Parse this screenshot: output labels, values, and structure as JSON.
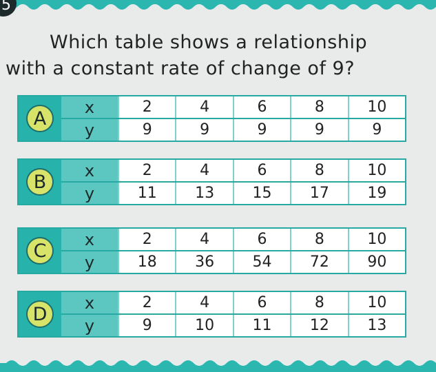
{
  "number": "5",
  "question": [
    "Which table shows a relationship",
    "with a constant rate of change of 9?"
  ],
  "options": [
    {
      "letter": "A",
      "rows": [
        [
          "x",
          "2",
          "4",
          "6",
          "8",
          "10"
        ],
        [
          "y",
          "9",
          "9",
          "9",
          "9",
          "9"
        ]
      ]
    },
    {
      "letter": "B",
      "rows": [
        [
          "x",
          "2",
          "4",
          "6",
          "8",
          "10"
        ],
        [
          "y",
          "11",
          "13",
          "15",
          "17",
          "19"
        ]
      ]
    },
    {
      "letter": "C",
      "rows": [
        [
          "x",
          "2",
          "4",
          "6",
          "8",
          "10"
        ],
        [
          "y",
          "18",
          "36",
          "54",
          "72",
          "90"
        ]
      ]
    },
    {
      "letter": "D",
      "rows": [
        [
          "x",
          "2",
          "4",
          "6",
          "8",
          "10"
        ],
        [
          "y",
          "9",
          "10",
          "11",
          "12",
          "13"
        ]
      ]
    }
  ]
}
